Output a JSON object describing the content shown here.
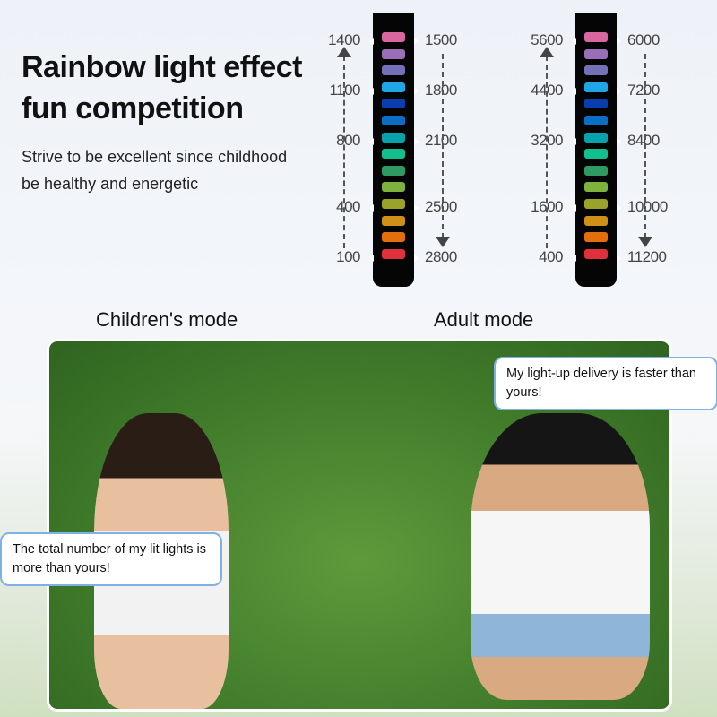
{
  "headline": {
    "line1": "Rainbow light effect",
    "line2": "fun competition"
  },
  "tagline": {
    "line1": "Strive to be excellent since childhood",
    "line2": "be healthy and energetic"
  },
  "light_colors": [
    "#d9679f",
    "#9a6fb8",
    "#7471b8",
    "#1ea6e6",
    "#0a3eb0",
    "#0a6fc4",
    "#07a2ac",
    "#12c08e",
    "#2e9b62",
    "#7fb23c",
    "#9aa22a",
    "#d08f16",
    "#e36f0c",
    "#e0303e"
  ],
  "children_mode": {
    "label": "Children's mode",
    "left_scale": [
      "1400",
      "1100",
      "800",
      "400",
      "100"
    ],
    "right_scale": [
      "1500",
      "1800",
      "2100",
      "2500",
      "2800"
    ]
  },
  "adult_mode": {
    "label": "Adult mode",
    "left_scale": [
      "5600",
      "4400",
      "3200",
      "1600",
      "400"
    ],
    "right_scale": [
      "6000",
      "7200",
      "8400",
      "10000",
      "11200"
    ]
  },
  "bubbles": {
    "boy": "My light-up delivery is faster than yours!",
    "girl": "The total number of my lit lights is more than yours!"
  }
}
